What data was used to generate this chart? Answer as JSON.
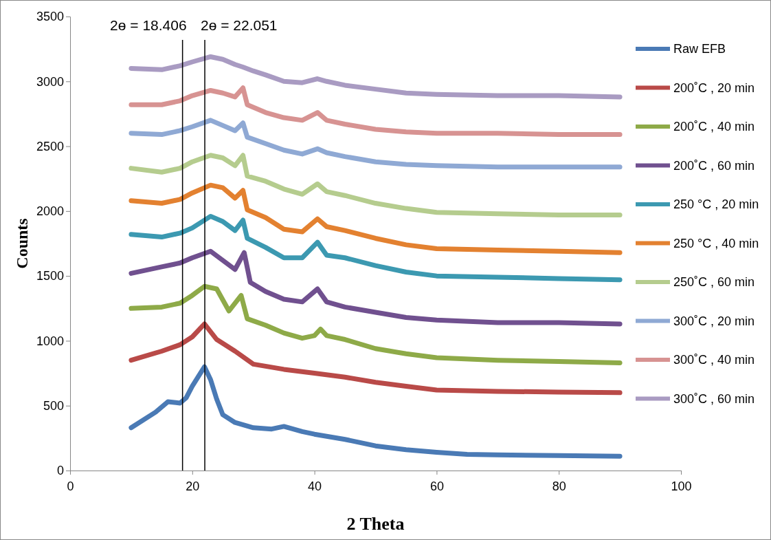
{
  "chart_data": {
    "type": "line",
    "xlabel": "2 Theta",
    "ylabel": "Counts",
    "xlim": [
      0,
      100
    ],
    "xticks": [
      0,
      20,
      40,
      60,
      80,
      100
    ],
    "ylim": [
      0,
      3500
    ],
    "yticks": [
      0,
      500,
      1000,
      1500,
      2000,
      2500,
      3000,
      3500
    ],
    "grid": false,
    "legend": "right",
    "marker": "none",
    "line_style": "solid",
    "ref_lines": [
      {
        "axis": "x",
        "value": 18.406,
        "label": "2ɵ = 18.406",
        "color": "#000000"
      },
      {
        "axis": "x",
        "value": 22.051,
        "label": "2ɵ = 22.051",
        "color": "#000000"
      }
    ],
    "series": [
      {
        "name": "Raw EFB",
        "color": "#4a7ab5",
        "x": [
          10,
          14,
          16,
          18,
          19,
          20,
          22,
          23,
          24,
          25,
          27,
          30,
          33,
          35,
          38,
          40,
          45,
          50,
          55,
          60,
          65,
          70,
          80,
          90
        ],
        "values": [
          330,
          450,
          530,
          520,
          560,
          650,
          800,
          700,
          550,
          430,
          370,
          330,
          320,
          340,
          300,
          280,
          240,
          190,
          160,
          140,
          125,
          120,
          115,
          110
        ]
      },
      {
        "name": "200˚C , 20 min",
        "color": "#b94a48",
        "x": [
          10,
          15,
          18,
          20,
          22,
          24,
          27,
          30,
          35,
          40,
          45,
          50,
          55,
          60,
          70,
          80,
          90
        ],
        "values": [
          850,
          920,
          970,
          1030,
          1130,
          1010,
          920,
          820,
          780,
          750,
          720,
          680,
          650,
          620,
          610,
          605,
          600
        ]
      },
      {
        "name": "200˚C , 40 min",
        "color": "#8eaa48",
        "x": [
          10,
          15,
          18,
          20,
          22,
          24,
          26,
          28,
          29,
          32,
          35,
          38,
          40,
          41,
          42,
          45,
          50,
          55,
          60,
          70,
          80,
          90
        ],
        "values": [
          1250,
          1260,
          1290,
          1350,
          1420,
          1400,
          1230,
          1350,
          1170,
          1120,
          1060,
          1020,
          1040,
          1090,
          1040,
          1010,
          940,
          900,
          870,
          850,
          840,
          830
        ]
      },
      {
        "name": "200˚C , 60 min",
        "color": "#70508f",
        "x": [
          10,
          15,
          18,
          20,
          23,
          25,
          27,
          28.5,
          29.5,
          32,
          35,
          38,
          40.5,
          42,
          45,
          50,
          55,
          60,
          70,
          80,
          90
        ],
        "values": [
          1520,
          1570,
          1600,
          1640,
          1690,
          1620,
          1550,
          1680,
          1450,
          1380,
          1320,
          1300,
          1400,
          1300,
          1260,
          1220,
          1180,
          1160,
          1140,
          1140,
          1130
        ]
      },
      {
        "name": "250 °C , 20 min",
        "color": "#3c99b1",
        "x": [
          10,
          15,
          18,
          20,
          23,
          25,
          27,
          28.3,
          29,
          32,
          35,
          38,
          40.5,
          42,
          45,
          50,
          55,
          60,
          70,
          80,
          90
        ],
        "values": [
          1820,
          1800,
          1830,
          1870,
          1960,
          1920,
          1850,
          1930,
          1790,
          1720,
          1640,
          1640,
          1760,
          1660,
          1640,
          1580,
          1530,
          1500,
          1490,
          1480,
          1470
        ]
      },
      {
        "name": "250 °C , 40 min",
        "color": "#e38130",
        "x": [
          10,
          15,
          18,
          20,
          23,
          25,
          27,
          28.3,
          29,
          32,
          35,
          38,
          40.5,
          42,
          45,
          50,
          55,
          60,
          70,
          80,
          90
        ],
        "values": [
          2080,
          2060,
          2090,
          2140,
          2200,
          2180,
          2100,
          2160,
          2010,
          1950,
          1860,
          1840,
          1940,
          1880,
          1850,
          1790,
          1740,
          1710,
          1700,
          1690,
          1680
        ]
      },
      {
        "name": "250˚C , 60 min",
        "color": "#b5cc8e",
        "x": [
          10,
          15,
          18,
          20,
          23,
          25,
          27,
          28.3,
          29,
          32,
          35,
          38,
          40.5,
          42,
          45,
          50,
          55,
          60,
          70,
          80,
          90
        ],
        "values": [
          2330,
          2300,
          2330,
          2380,
          2430,
          2410,
          2350,
          2430,
          2270,
          2230,
          2170,
          2130,
          2210,
          2150,
          2120,
          2060,
          2020,
          1990,
          1980,
          1970,
          1970
        ]
      },
      {
        "name": "300˚C , 20 min",
        "color": "#8fa9d4",
        "x": [
          10,
          15,
          18,
          20,
          23,
          25,
          27,
          28.3,
          29,
          32,
          35,
          38,
          40.5,
          42,
          45,
          50,
          55,
          60,
          70,
          80,
          90
        ],
        "values": [
          2600,
          2590,
          2620,
          2650,
          2700,
          2660,
          2620,
          2680,
          2570,
          2520,
          2470,
          2440,
          2480,
          2450,
          2420,
          2380,
          2360,
          2350,
          2340,
          2340,
          2340
        ]
      },
      {
        "name": "300˚C , 40 min",
        "color": "#d79392",
        "x": [
          10,
          15,
          18,
          20,
          23,
          25,
          27,
          28.3,
          29,
          32,
          35,
          38,
          40.5,
          42,
          45,
          50,
          55,
          60,
          70,
          80,
          90
        ],
        "values": [
          2820,
          2820,
          2850,
          2890,
          2930,
          2910,
          2880,
          2950,
          2820,
          2760,
          2720,
          2700,
          2760,
          2700,
          2670,
          2630,
          2610,
          2600,
          2600,
          2590,
          2590
        ]
      },
      {
        "name": "300˚C , 60 min",
        "color": "#a99bc2",
        "x": [
          10,
          15,
          18,
          20,
          23,
          25,
          27,
          28.3,
          30,
          32,
          35,
          38,
          40.5,
          42,
          45,
          50,
          55,
          60,
          70,
          80,
          90
        ],
        "values": [
          3100,
          3090,
          3120,
          3150,
          3190,
          3170,
          3130,
          3110,
          3080,
          3050,
          3000,
          2990,
          3020,
          3000,
          2970,
          2940,
          2910,
          2900,
          2890,
          2890,
          2880
        ]
      }
    ]
  }
}
